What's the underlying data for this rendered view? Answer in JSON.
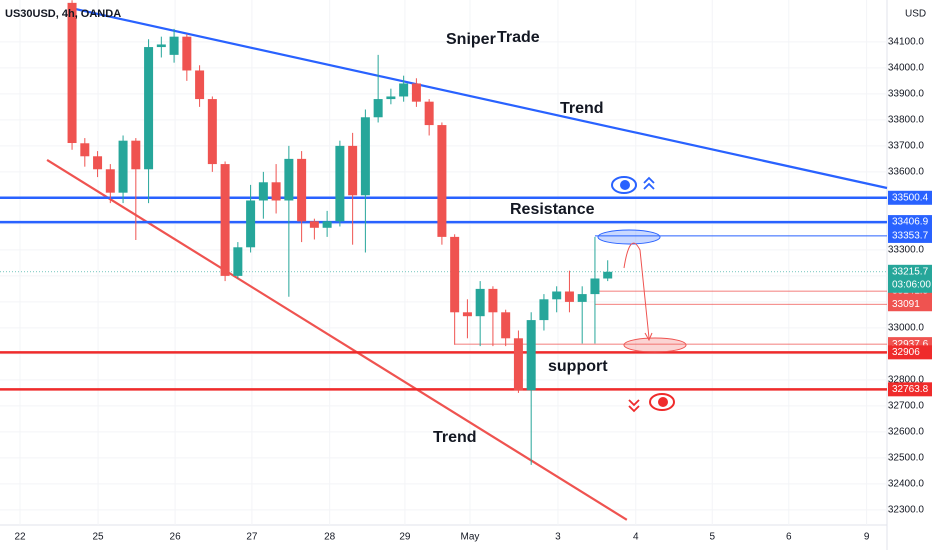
{
  "chart_data": {
    "type": "candlestick",
    "symbol": "US30USD, 4h, OANDA",
    "currency": "USD",
    "x": [
      0,
      1,
      2,
      3,
      4,
      5,
      6,
      7,
      8,
      9,
      10,
      11,
      12,
      13,
      14,
      15,
      16,
      17,
      18,
      19,
      20,
      21,
      22,
      23,
      24,
      25,
      26,
      27,
      28,
      29,
      30,
      31,
      32,
      33,
      34,
      35,
      36,
      37,
      38,
      39,
      40,
      41,
      42
    ],
    "open": [
      34250,
      33710,
      33660,
      33610,
      33520,
      33720,
      33610,
      34080,
      34050,
      34120,
      33990,
      33880,
      33630,
      33200,
      33310,
      33490,
      33560,
      33490,
      33650,
      33410,
      33385,
      33410,
      33700,
      33510,
      33810,
      33880,
      33890,
      33940,
      33870,
      33780,
      33350,
      33060,
      33045,
      33150,
      33060,
      32960,
      32760,
      33030,
      33110,
      33140,
      33100,
      33130,
      33190
    ],
    "high": [
      34260,
      33730,
      33680,
      33630,
      33740,
      33730,
      34110,
      34120,
      34150,
      34130,
      34010,
      33890,
      33640,
      33330,
      33550,
      33600,
      33630,
      33700,
      33680,
      33420,
      33450,
      33720,
      33750,
      33840,
      34050,
      33920,
      33970,
      33960,
      33880,
      33790,
      33360,
      33110,
      33180,
      33160,
      33070,
      32990,
      33060,
      33130,
      33160,
      33220,
      33160,
      33350,
      33260
    ],
    "low": [
      33685,
      33620,
      33580,
      33480,
      33480,
      33338,
      33480,
      34040,
      34020,
      33950,
      33850,
      33600,
      33180,
      33190,
      33290,
      33420,
      33440,
      33120,
      33330,
      33340,
      33350,
      33390,
      33320,
      33290,
      33790,
      33860,
      33870,
      33850,
      33740,
      33320,
      32935,
      32960,
      32930,
      32930,
      32930,
      32750,
      32473,
      32990,
      33060,
      33060,
      32940,
      32940,
      33180
    ],
    "close": [
      33711,
      33660,
      33610,
      33520,
      33720,
      33610,
      34080,
      34090,
      34120,
      33990,
      33880,
      33630,
      33200,
      33310,
      33490,
      33560,
      33490,
      33650,
      33410,
      33385,
      33410,
      33700,
      33510,
      33810,
      33880,
      33890,
      33940,
      33870,
      33780,
      33350,
      33060,
      33045,
      33150,
      33060,
      32960,
      32760,
      33030,
      33110,
      33140,
      33100,
      33130,
      33190,
      33215.7
    ],
    "up_color": "#26a69a",
    "down_color": "#ef5350",
    "xlim": [
      -5.65,
      63.9
    ],
    "ylim": [
      32242,
      34261
    ],
    "xticks": [
      {
        "value": -4.08,
        "label": "22"
      },
      {
        "value": 2.04,
        "label": "25"
      },
      {
        "value": 8.08,
        "label": "26"
      },
      {
        "value": 14.1,
        "label": "27"
      },
      {
        "value": 20.2,
        "label": "28"
      },
      {
        "value": 26.1,
        "label": "29"
      },
      {
        "value": 31.2,
        "label": "May"
      },
      {
        "value": 38.1,
        "label": "3"
      },
      {
        "value": 44.2,
        "label": "4"
      },
      {
        "value": 50.2,
        "label": "5"
      },
      {
        "value": 56.2,
        "label": "6"
      },
      {
        "value": 62.3,
        "label": "9"
      }
    ],
    "yticks": [
      {
        "value": 32300,
        "label": "32300.0"
      },
      {
        "value": 32400,
        "label": "32400.0"
      },
      {
        "value": 32500,
        "label": "32500.0"
      },
      {
        "value": 32600,
        "label": "32600.0"
      },
      {
        "value": 32700,
        "label": "32700.0"
      },
      {
        "value": 32800,
        "label": "32800.0"
      },
      {
        "value": 32900,
        "label": "32900.0"
      },
      {
        "value": 33000,
        "label": "33000.0"
      },
      {
        "value": 33100,
        "label": "33100.0"
      },
      {
        "value": 33200,
        "label": "33200.0"
      },
      {
        "value": 33300,
        "label": "33300.0"
      },
      {
        "value": 33400,
        "label": "33400.0"
      },
      {
        "value": 33500,
        "label": "33500.0"
      },
      {
        "value": 33600,
        "label": "33600.0"
      },
      {
        "value": 33700,
        "label": "33700.0"
      },
      {
        "value": 33800,
        "label": "33800.0"
      },
      {
        "value": 33900,
        "label": "33900.0"
      },
      {
        "value": 34000,
        "label": "34000.0"
      },
      {
        "value": 34100,
        "label": "34100.0"
      }
    ],
    "levels": [
      {
        "value": 33500.4,
        "color": "#2962ff",
        "width": 2.5,
        "from": -5.65
      },
      {
        "value": 33406.9,
        "color": "#2962ff",
        "width": 2.5,
        "from": -5.65
      },
      {
        "value": 33353.7,
        "color": "#2962ff",
        "width": 1,
        "from": 41
      },
      {
        "value": 33141.5,
        "color": "#ef5350",
        "width": 0.7,
        "from": 41
      },
      {
        "value": 33091.0,
        "color": "#ef5350",
        "width": 0.7,
        "from": 41
      },
      {
        "value": 32937.6,
        "color": "#ef5350",
        "width": 0.7,
        "from": 30
      },
      {
        "value": 32906.0,
        "color": "#ef2b2b",
        "width": 2.5,
        "from": -5.65
      },
      {
        "value": 32763.8,
        "color": "#ef2b2b",
        "width": 2.5,
        "from": -5.65
      }
    ],
    "last_price": 33215.7,
    "countdown": "03:06:00",
    "trendlines": [
      {
        "x": [
          -0.16,
          63.9
        ],
        "y": [
          34230.8,
          33538
        ],
        "color": "#2962ff"
      },
      {
        "x": [
          -1.96,
          43.5
        ],
        "y": [
          33646,
          32262
        ],
        "color": "#ef5350"
      }
    ],
    "annotations": [
      {
        "text": "Sniper",
        "color": "#2962ff"
      },
      {
        "text": "Trade",
        "color": "#ef2b2b"
      },
      {
        "text": "Trend",
        "color": "#2962ff"
      },
      {
        "text": "Resistance",
        "color": "#2962ff"
      },
      {
        "text": "support",
        "color": "#ef2b2b"
      },
      {
        "text": "Trend",
        "color": "#ef2b2b"
      }
    ]
  }
}
